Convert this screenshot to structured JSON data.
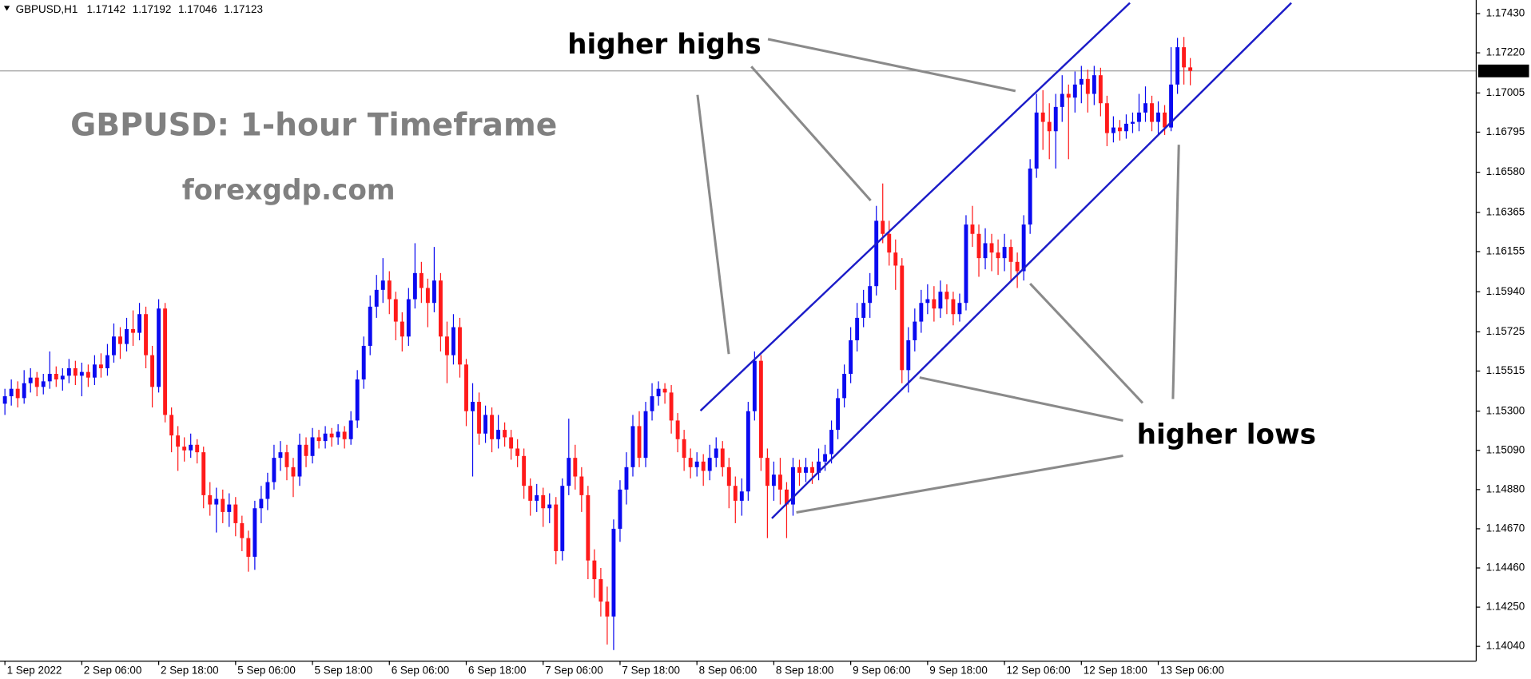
{
  "chart_data": {
    "type": "candlestick",
    "title": "GBPUSD,H1",
    "annotations": [
      "higher highs",
      "higher lows"
    ],
    "watermark": "GBPUSD: 1-hour Timeframe",
    "source": "forexgdp.com",
    "up_color": "#0a0af0",
    "down_color": "#ff1a1a",
    "ylim": [
      1.13961,
      1.17503
    ],
    "yticks": [
      {
        "value": 1.1743,
        "label": "1.17430"
      },
      {
        "value": 1.1722,
        "label": "1.17220"
      },
      1.17005,
      1.16795,
      {
        "value": 1.1658,
        "label": "1.16580"
      },
      1.16365,
      1.16155,
      {
        "value": 1.1594,
        "label": "1.15940"
      },
      1.15725,
      1.15515,
      {
        "value": 1.153,
        "label": "1.15300"
      },
      {
        "value": 1.1509,
        "label": "1.15090"
      },
      {
        "value": 1.1488,
        "label": "1.14880"
      },
      {
        "value": 1.1467,
        "label": "1.14670"
      },
      {
        "value": 1.1446,
        "label": "1.14460"
      },
      {
        "value": 1.1425,
        "label": "1.14250"
      },
      {
        "value": 1.1404,
        "label": "1.14040"
      }
    ],
    "categories": [
      "1 Sep 2022",
      null,
      null,
      null,
      null,
      null,
      null,
      null,
      null,
      null,
      null,
      null,
      "2 Sep 06:00",
      null,
      null,
      null,
      null,
      null,
      null,
      null,
      null,
      null,
      null,
      null,
      "2 Sep 18:00",
      null,
      null,
      null,
      null,
      null,
      null,
      null,
      null,
      null,
      null,
      null,
      "5 Sep 06:00",
      null,
      null,
      null,
      null,
      null,
      null,
      null,
      null,
      null,
      null,
      null,
      "5 Sep 18:00",
      null,
      null,
      null,
      null,
      null,
      null,
      null,
      null,
      null,
      null,
      null,
      "6 Sep 06:00",
      null,
      null,
      null,
      null,
      null,
      null,
      null,
      null,
      null,
      null,
      null,
      "6 Sep 18:00",
      null,
      null,
      null,
      null,
      null,
      null,
      null,
      null,
      null,
      null,
      null,
      "7 Sep 06:00",
      null,
      null,
      null,
      null,
      null,
      null,
      null,
      null,
      null,
      null,
      null,
      "7 Sep 18:00",
      null,
      null,
      null,
      null,
      null,
      null,
      null,
      null,
      null,
      null,
      null,
      "8 Sep 06:00",
      null,
      null,
      null,
      null,
      null,
      null,
      null,
      null,
      null,
      null,
      null,
      "8 Sep 18:00",
      null,
      null,
      null,
      null,
      null,
      null,
      null,
      null,
      null,
      null,
      null,
      "9 Sep 06:00",
      null,
      null,
      null,
      null,
      null,
      null,
      null,
      null,
      null,
      null,
      null,
      "9 Sep 18:00",
      null,
      null,
      null,
      null,
      null,
      null,
      null,
      null,
      null,
      null,
      null,
      "12 Sep 06:00",
      null,
      null,
      null,
      null,
      null,
      null,
      null,
      null,
      null,
      null,
      null,
      "12 Sep 18:00",
      null,
      null,
      null,
      null,
      null,
      null,
      null,
      null,
      null,
      null,
      null,
      "13 Sep 06:00",
      null,
      null,
      null,
      null,
      null
    ],
    "ohlc": [
      [
        1.1534,
        1.1542,
        1.1528,
        1.1538
      ],
      [
        1.1538,
        1.1547,
        1.1533,
        1.1542
      ],
      [
        1.1542,
        1.1546,
        1.1532,
        1.1537
      ],
      [
        1.1537,
        1.1552,
        1.1534,
        1.1545
      ],
      [
        1.1545,
        1.1553,
        1.154,
        1.1548
      ],
      [
        1.1548,
        1.1551,
        1.1538,
        1.1543
      ],
      [
        1.1543,
        1.155,
        1.1539,
        1.1546
      ],
      [
        1.1546,
        1.1562,
        1.1542,
        1.155
      ],
      [
        1.155,
        1.1554,
        1.1543,
        1.1547
      ],
      [
        1.1547,
        1.1553,
        1.1541,
        1.1549
      ],
      [
        1.1549,
        1.1558,
        1.1545,
        1.1553
      ],
      [
        1.1553,
        1.1557,
        1.1544,
        1.1549
      ],
      [
        1.1549,
        1.1556,
        1.1538,
        1.1551
      ],
      [
        1.1551,
        1.1555,
        1.1543,
        1.1548
      ],
      [
        1.1548,
        1.156,
        1.1544,
        1.1555
      ],
      [
        1.1555,
        1.1561,
        1.1548,
        1.1553
      ],
      [
        1.1553,
        1.1566,
        1.1549,
        1.156
      ],
      [
        1.156,
        1.1577,
        1.1556,
        1.157
      ],
      [
        1.157,
        1.1575,
        1.1558,
        1.1566
      ],
      [
        1.1566,
        1.158,
        1.1562,
        1.1574
      ],
      [
        1.1574,
        1.1584,
        1.1565,
        1.1572
      ],
      [
        1.1572,
        1.1588,
        1.1568,
        1.1582
      ],
      [
        1.1582,
        1.1586,
        1.1553,
        1.156
      ],
      [
        1.156,
        1.1565,
        1.1532,
        1.1543
      ],
      [
        1.1543,
        1.159,
        1.154,
        1.1585
      ],
      [
        1.1585,
        1.1588,
        1.1524,
        1.1528
      ],
      [
        1.1528,
        1.1532,
        1.1508,
        1.1517
      ],
      [
        1.1517,
        1.1522,
        1.1498,
        1.1511
      ],
      [
        1.1511,
        1.1516,
        1.1503,
        1.1509
      ],
      [
        1.1509,
        1.1518,
        1.1505,
        1.1512
      ],
      [
        1.1512,
        1.1515,
        1.1502,
        1.1508
      ],
      [
        1.1508,
        1.1511,
        1.1478,
        1.1485
      ],
      [
        1.1485,
        1.1492,
        1.1474,
        1.148
      ],
      [
        1.148,
        1.1489,
        1.1465,
        1.1483
      ],
      [
        1.1483,
        1.1488,
        1.147,
        1.1476
      ],
      [
        1.1476,
        1.1486,
        1.1468,
        1.148
      ],
      [
        1.148,
        1.1484,
        1.1463,
        1.147
      ],
      [
        1.147,
        1.1474,
        1.1455,
        1.1462
      ],
      [
        1.1462,
        1.1466,
        1.1444,
        1.1452
      ],
      [
        1.1452,
        1.1482,
        1.1445,
        1.1478
      ],
      [
        1.1478,
        1.149,
        1.147,
        1.1483
      ],
      [
        1.1483,
        1.1497,
        1.1477,
        1.1492
      ],
      [
        1.1492,
        1.1512,
        1.1488,
        1.1505
      ],
      [
        1.1505,
        1.1514,
        1.1498,
        1.1508
      ],
      [
        1.1508,
        1.1512,
        1.1493,
        1.15
      ],
      [
        1.15,
        1.1505,
        1.1484,
        1.1495
      ],
      [
        1.1495,
        1.1518,
        1.149,
        1.1512
      ],
      [
        1.1512,
        1.1516,
        1.15,
        1.1506
      ],
      [
        1.1506,
        1.1521,
        1.1502,
        1.1516
      ],
      [
        1.1516,
        1.152,
        1.151,
        1.1514
      ],
      [
        1.1514,
        1.1522,
        1.151,
        1.1518
      ],
      [
        1.1518,
        1.1521,
        1.1511,
        1.1516
      ],
      [
        1.1516,
        1.1523,
        1.1512,
        1.1519
      ],
      [
        1.1519,
        1.1522,
        1.151,
        1.1515
      ],
      [
        1.1515,
        1.153,
        1.1512,
        1.1525
      ],
      [
        1.1525,
        1.1552,
        1.1521,
        1.1547
      ],
      [
        1.1547,
        1.157,
        1.1542,
        1.1565
      ],
      [
        1.1565,
        1.1592,
        1.156,
        1.1586
      ],
      [
        1.1586,
        1.1603,
        1.158,
        1.1595
      ],
      [
        1.1595,
        1.1612,
        1.1588,
        1.16
      ],
      [
        1.16,
        1.1605,
        1.1582,
        1.159
      ],
      [
        1.159,
        1.1594,
        1.1568,
        1.1578
      ],
      [
        1.1578,
        1.1583,
        1.1562,
        1.157
      ],
      [
        1.157,
        1.1596,
        1.1565,
        1.159
      ],
      [
        1.159,
        1.162,
        1.1585,
        1.1604
      ],
      [
        1.1604,
        1.161,
        1.1588,
        1.1596
      ],
      [
        1.1596,
        1.1601,
        1.1575,
        1.1588
      ],
      [
        1.1588,
        1.1618,
        1.1583,
        1.16
      ],
      [
        1.16,
        1.1604,
        1.1562,
        1.157
      ],
      [
        1.157,
        1.1578,
        1.1545,
        1.156
      ],
      [
        1.156,
        1.1582,
        1.1555,
        1.1575
      ],
      [
        1.1575,
        1.158,
        1.1548,
        1.1555
      ],
      [
        1.1555,
        1.1558,
        1.1522,
        1.153
      ],
      [
        1.153,
        1.1545,
        1.1495,
        1.1535
      ],
      [
        1.1535,
        1.154,
        1.1512,
        1.1518
      ],
      [
        1.1518,
        1.1533,
        1.1513,
        1.1528
      ],
      [
        1.1528,
        1.1532,
        1.1508,
        1.1515
      ],
      [
        1.1515,
        1.1528,
        1.151,
        1.152
      ],
      [
        1.152,
        1.1524,
        1.1511,
        1.1516
      ],
      [
        1.1516,
        1.152,
        1.1504,
        1.151
      ],
      [
        1.151,
        1.1515,
        1.15,
        1.1506
      ],
      [
        1.1506,
        1.151,
        1.1483,
        1.149
      ],
      [
        1.149,
        1.1494,
        1.1474,
        1.1482
      ],
      [
        1.1482,
        1.1491,
        1.1476,
        1.1485
      ],
      [
        1.1485,
        1.1489,
        1.1468,
        1.1478
      ],
      [
        1.1478,
        1.1486,
        1.147,
        1.148
      ],
      [
        1.148,
        1.1484,
        1.1448,
        1.1455
      ],
      [
        1.1455,
        1.1494,
        1.145,
        1.149
      ],
      [
        1.149,
        1.1526,
        1.1485,
        1.1505
      ],
      [
        1.1505,
        1.1512,
        1.1488,
        1.1495
      ],
      [
        1.1495,
        1.15,
        1.1476,
        1.1485
      ],
      [
        1.1485,
        1.149,
        1.144,
        1.145
      ],
      [
        1.145,
        1.1456,
        1.143,
        1.144
      ],
      [
        1.144,
        1.1446,
        1.142,
        1.1428
      ],
      [
        1.1428,
        1.1436,
        1.1405,
        1.142
      ],
      [
        1.142,
        1.1472,
        1.1402,
        1.1467
      ],
      [
        1.1467,
        1.1493,
        1.146,
        1.1488
      ],
      [
        1.1488,
        1.1508,
        1.148,
        1.15
      ],
      [
        1.15,
        1.1528,
        1.1495,
        1.1522
      ],
      [
        1.1522,
        1.153,
        1.15,
        1.1505
      ],
      [
        1.1505,
        1.1535,
        1.15,
        1.153
      ],
      [
        1.153,
        1.1545,
        1.1525,
        1.1538
      ],
      [
        1.1538,
        1.1546,
        1.1533,
        1.1542
      ],
      [
        1.1542,
        1.1545,
        1.1534,
        1.154
      ],
      [
        1.154,
        1.1544,
        1.1518,
        1.1525
      ],
      [
        1.1525,
        1.1529,
        1.1508,
        1.1515
      ],
      [
        1.1515,
        1.152,
        1.1498,
        1.1505
      ],
      [
        1.1505,
        1.151,
        1.1494,
        1.15
      ],
      [
        1.15,
        1.1508,
        1.1495,
        1.1503
      ],
      [
        1.1503,
        1.1507,
        1.149,
        1.1498
      ],
      [
        1.1498,
        1.1512,
        1.1493,
        1.1505
      ],
      [
        1.1505,
        1.1516,
        1.15,
        1.151
      ],
      [
        1.151,
        1.1514,
        1.1495,
        1.15
      ],
      [
        1.15,
        1.1505,
        1.1478,
        1.149
      ],
      [
        1.149,
        1.1495,
        1.147,
        1.1482
      ],
      [
        1.1482,
        1.1494,
        1.1474,
        1.1487
      ],
      [
        1.1487,
        1.1535,
        1.1482,
        1.153
      ],
      [
        1.153,
        1.1562,
        1.1525,
        1.1557
      ],
      [
        1.1557,
        1.156,
        1.1498,
        1.1505
      ],
      [
        1.1505,
        1.151,
        1.1462,
        1.149
      ],
      [
        1.149,
        1.1503,
        1.1482,
        1.1496
      ],
      [
        1.1496,
        1.1505,
        1.148,
        1.1488
      ],
      [
        1.1488,
        1.1492,
        1.1462,
        1.148
      ],
      [
        1.148,
        1.1505,
        1.1474,
        1.15
      ],
      [
        1.15,
        1.1504,
        1.149,
        1.1497
      ],
      [
        1.1497,
        1.1505,
        1.1492,
        1.15
      ],
      [
        1.15,
        1.1503,
        1.1491,
        1.1497
      ],
      [
        1.1497,
        1.151,
        1.1493,
        1.1503
      ],
      [
        1.1503,
        1.1512,
        1.1498,
        1.1507
      ],
      [
        1.1507,
        1.1525,
        1.1502,
        1.152
      ],
      [
        1.152,
        1.1542,
        1.1515,
        1.1537
      ],
      [
        1.1537,
        1.1555,
        1.1532,
        1.155
      ],
      [
        1.155,
        1.1575,
        1.1545,
        1.1568
      ],
      [
        1.1568,
        1.1588,
        1.1562,
        1.158
      ],
      [
        1.158,
        1.1595,
        1.1575,
        1.1588
      ],
      [
        1.1588,
        1.1604,
        1.158,
        1.1597
      ],
      [
        1.1597,
        1.164,
        1.1592,
        1.1632
      ],
      [
        1.1632,
        1.1652,
        1.162,
        1.1625
      ],
      [
        1.1625,
        1.1632,
        1.1608,
        1.1615
      ],
      [
        1.1615,
        1.1622,
        1.1595,
        1.1608
      ],
      [
        1.1608,
        1.1612,
        1.1545,
        1.1552
      ],
      [
        1.1552,
        1.1575,
        1.154,
        1.1568
      ],
      [
        1.1568,
        1.1585,
        1.1562,
        1.1578
      ],
      [
        1.1578,
        1.1595,
        1.1572,
        1.1588
      ],
      [
        1.1588,
        1.1598,
        1.1582,
        1.159
      ],
      [
        1.159,
        1.1597,
        1.1578,
        1.1585
      ],
      [
        1.1585,
        1.16,
        1.158,
        1.1594
      ],
      [
        1.1594,
        1.1598,
        1.1582,
        1.159
      ],
      [
        1.159,
        1.1594,
        1.1576,
        1.1582
      ],
      [
        1.1582,
        1.1593,
        1.1578,
        1.1588
      ],
      [
        1.1588,
        1.1635,
        1.1584,
        1.163
      ],
      [
        1.163,
        1.164,
        1.1618,
        1.1625
      ],
      [
        1.1625,
        1.163,
        1.1602,
        1.1612
      ],
      [
        1.1612,
        1.1628,
        1.1606,
        1.162
      ],
      [
        1.162,
        1.1625,
        1.1605,
        1.1615
      ],
      [
        1.1615,
        1.1622,
        1.1603,
        1.1612
      ],
      [
        1.1612,
        1.1625,
        1.1605,
        1.1618
      ],
      [
        1.1618,
        1.1622,
        1.16,
        1.161
      ],
      [
        1.161,
        1.1615,
        1.1596,
        1.1605
      ],
      [
        1.1605,
        1.1635,
        1.16,
        1.163
      ],
      [
        1.163,
        1.1665,
        1.1625,
        1.166
      ],
      [
        1.166,
        1.17,
        1.1655,
        1.169
      ],
      [
        1.169,
        1.1702,
        1.167,
        1.1685
      ],
      [
        1.1685,
        1.1695,
        1.1665,
        1.168
      ],
      [
        1.168,
        1.17,
        1.166,
        1.1693
      ],
      [
        1.1693,
        1.171,
        1.1685,
        1.17
      ],
      [
        1.17,
        1.1705,
        1.1665,
        1.1698
      ],
      [
        1.1698,
        1.1712,
        1.169,
        1.1705
      ],
      [
        1.1705,
        1.1715,
        1.1695,
        1.1708
      ],
      [
        1.1708,
        1.1713,
        1.169,
        1.17
      ],
      [
        1.17,
        1.1715,
        1.1694,
        1.171
      ],
      [
        1.171,
        1.1714,
        1.1688,
        1.1695
      ],
      [
        1.1695,
        1.1699,
        1.1672,
        1.1679
      ],
      [
        1.1679,
        1.1688,
        1.1674,
        1.1682
      ],
      [
        1.1682,
        1.1686,
        1.1675,
        1.168
      ],
      [
        1.168,
        1.1689,
        1.1676,
        1.1684
      ],
      [
        1.1684,
        1.169,
        1.1679,
        1.1685
      ],
      [
        1.1685,
        1.17,
        1.168,
        1.169
      ],
      [
        1.169,
        1.1704,
        1.1685,
        1.1695
      ],
      [
        1.1695,
        1.1699,
        1.168,
        1.1685
      ],
      [
        1.1685,
        1.1696,
        1.1678,
        1.169
      ],
      [
        1.169,
        1.1694,
        1.1678,
        1.1682
      ],
      [
        1.1682,
        1.1725,
        1.168,
        1.1705
      ],
      [
        1.1705,
        1.173,
        1.17,
        1.1725
      ],
      [
        1.1725,
        1.17305,
        1.1705,
        1.17142
      ],
      [
        1.17142,
        1.17192,
        1.17046,
        1.17123
      ]
    ]
  }
}
